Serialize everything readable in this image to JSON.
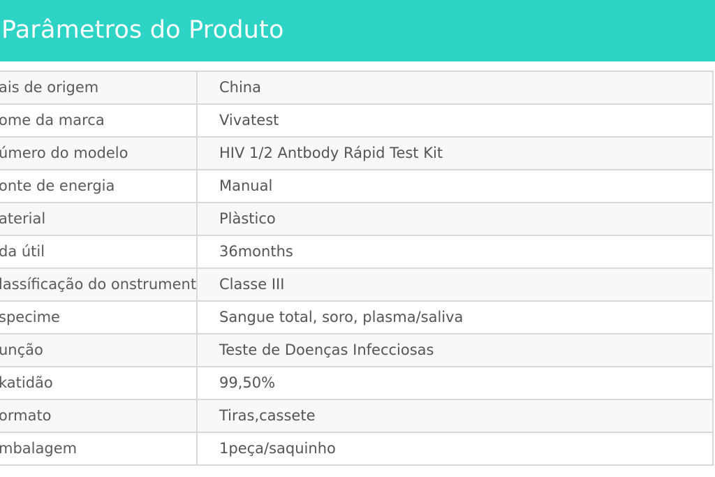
{
  "header": {
    "title": "Parâmetros do Produto",
    "background_color": "#2dd3c5"
  },
  "rows": [
    {
      "label": "ais de origem",
      "value": "China"
    },
    {
      "label": "ome da marca",
      "value": "Vivatest"
    },
    {
      "label": "úmero do modelo",
      "value": "HIV 1/2 Antbody Rápid Test Kit"
    },
    {
      "label": "onte de energia",
      "value": "Manual"
    },
    {
      "label": "aterial",
      "value": "Plàstico"
    },
    {
      "label": "da útil",
      "value": "36months"
    },
    {
      "label": "lassíficação do onstrumento",
      "value": "Classe III"
    },
    {
      "label": "specime",
      "value": "Sangue total, soro, plasma/saliva"
    },
    {
      "label": "unção",
      "value": "Teste de Doenças Infecciosas"
    },
    {
      "label": "katidão",
      "value": "99,50%"
    },
    {
      "label": "ormato",
      "value": "Tiras,cassete"
    },
    {
      "label": "mbalagem",
      "value": "1peça/saquinho"
    }
  ]
}
